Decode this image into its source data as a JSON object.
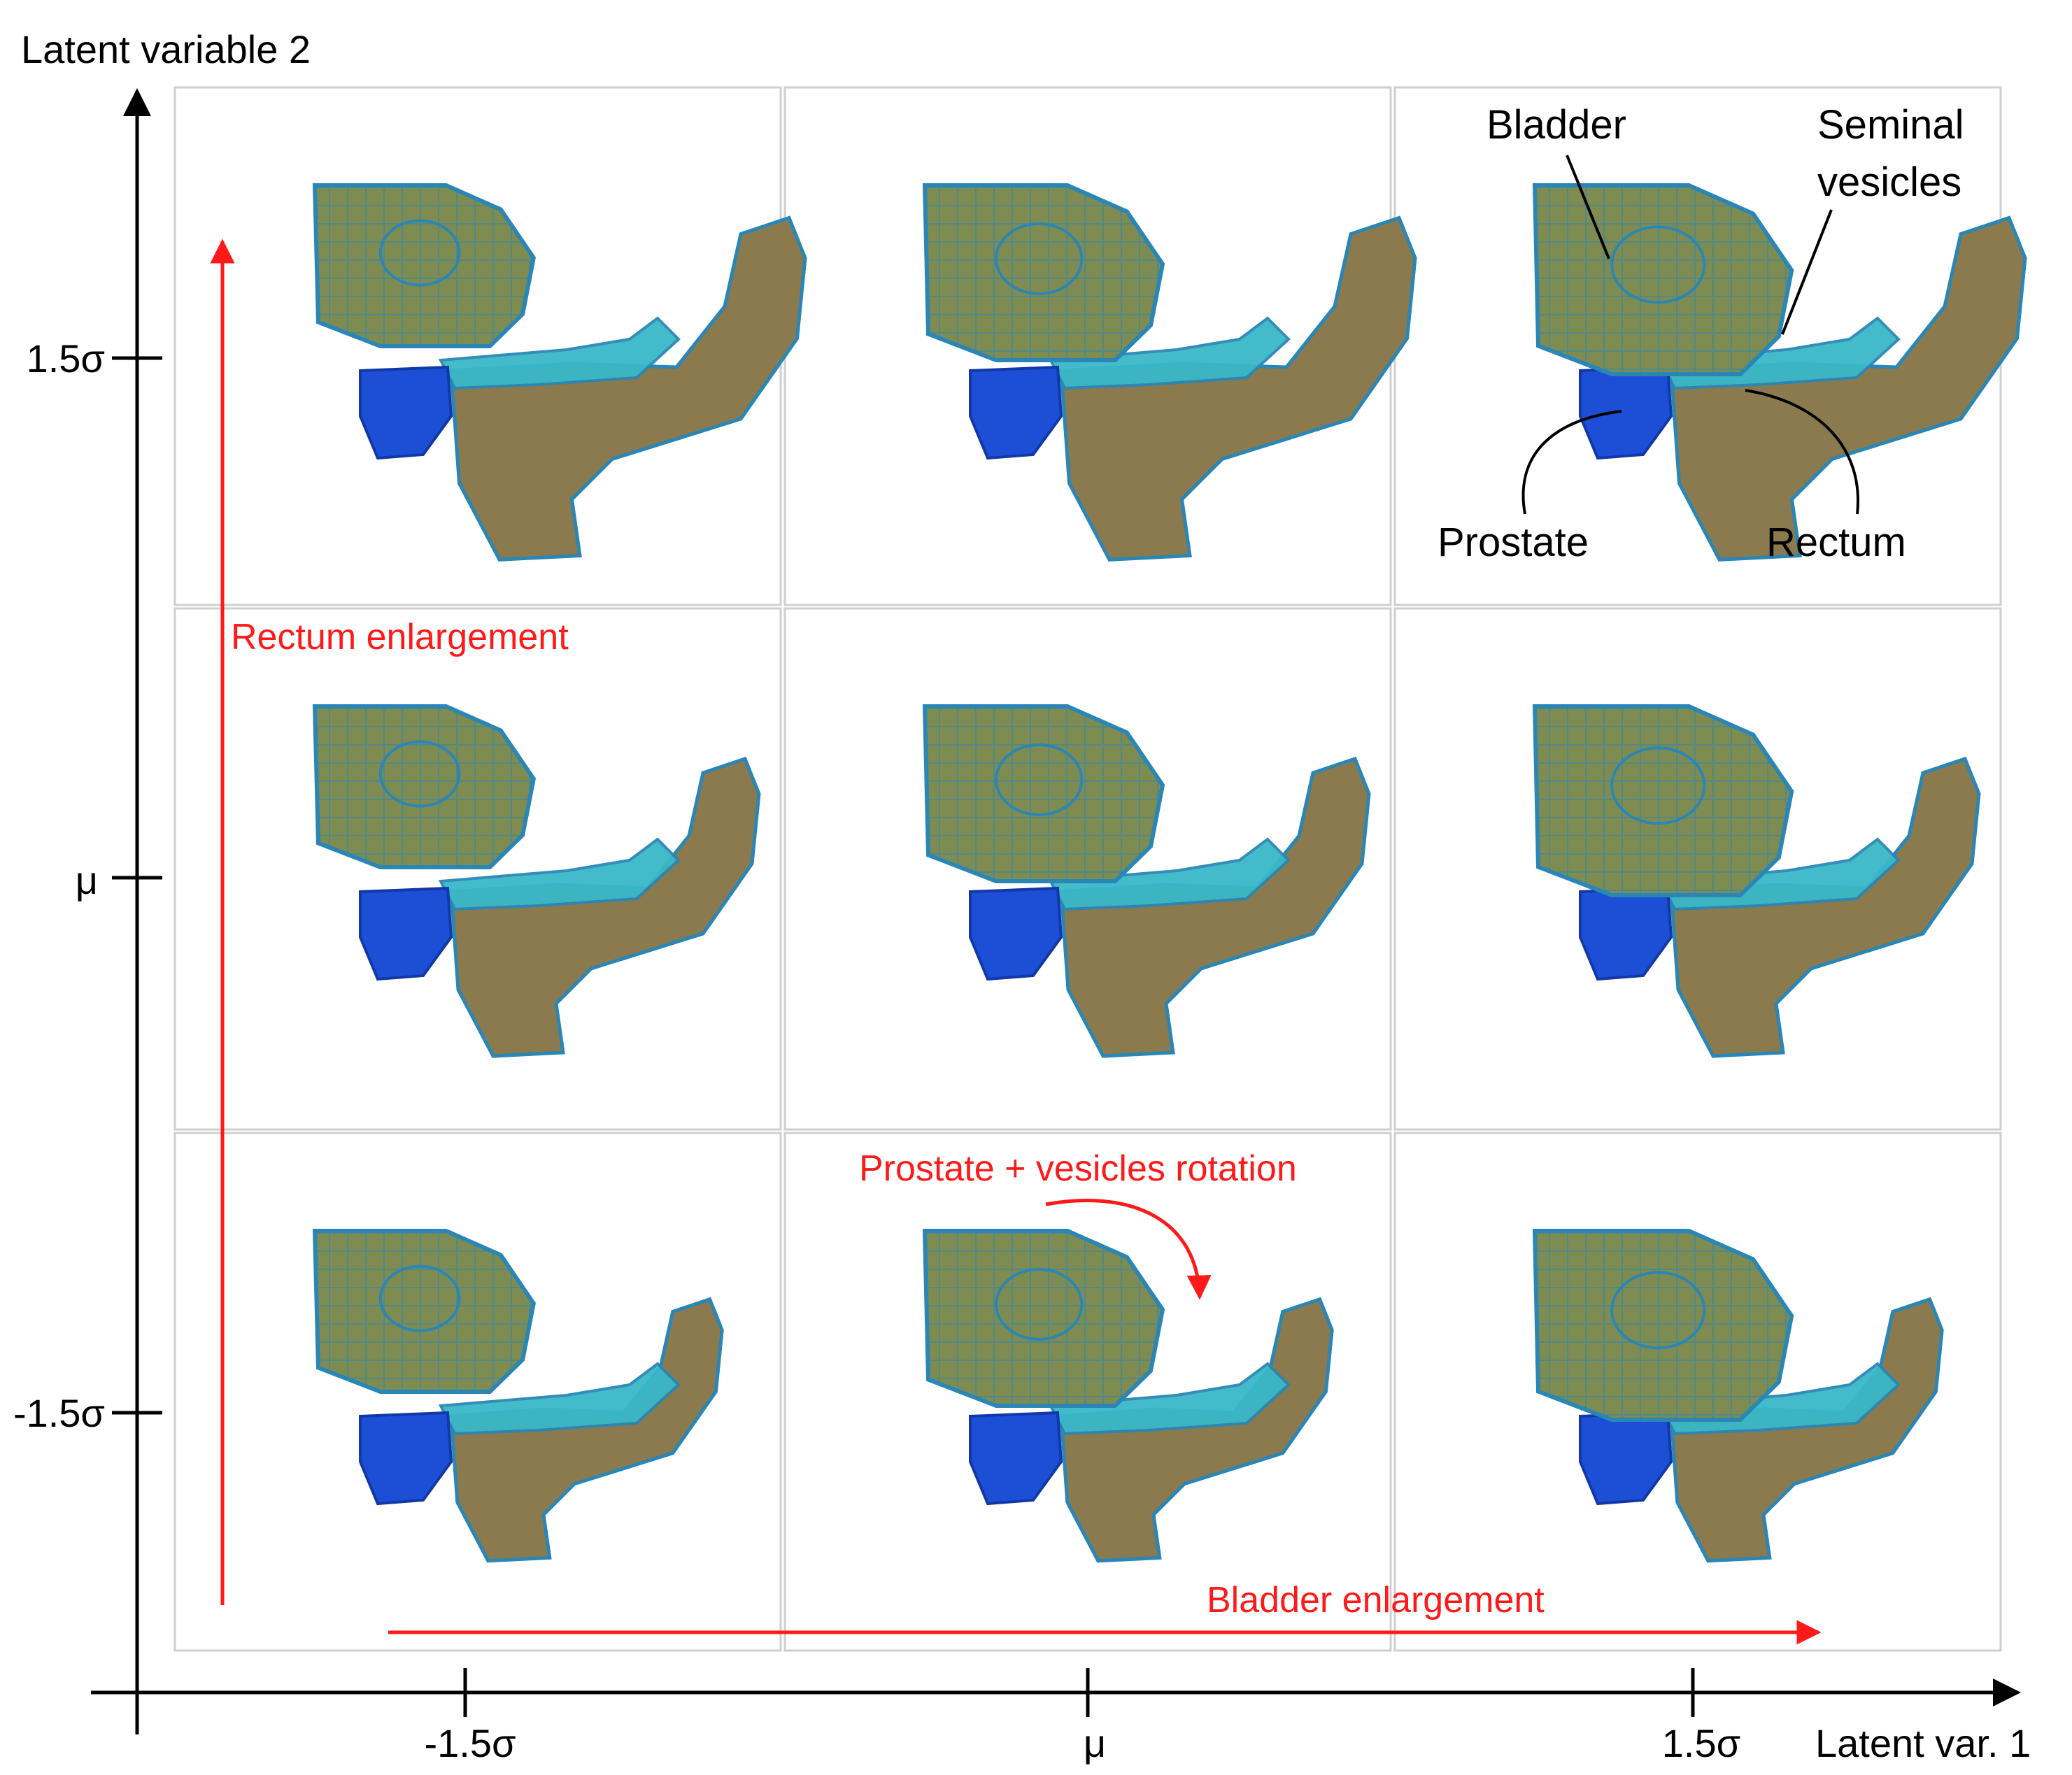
{
  "axes": {
    "y_title": "Latent variable 2",
    "x_title": "Latent var. 1",
    "y_ticks": [
      "1.5σ",
      "μ",
      "-1.5σ"
    ],
    "x_ticks": [
      "-1.5σ",
      "μ",
      "1.5σ"
    ]
  },
  "grid": {
    "rows": 3,
    "cols": 3
  },
  "organ_labels": {
    "bladder": "Bladder",
    "seminal_line1": "Seminal",
    "seminal_line2": "vesicles",
    "prostate": "Prostate",
    "rectum": "Rectum"
  },
  "annotations": {
    "rectum": "Rectum enlargement",
    "bladder": "Bladder enlargement",
    "rotation": "Prostate + vesicles rotation"
  },
  "colors": {
    "bladder": "#7e8c52",
    "bladder_edge": "#2a86b5",
    "prostate": "#1c4ed6",
    "vesicles": "#39b8c8",
    "rectum": "#8a7a4e",
    "arrow": "#ff1a1a",
    "cell_border": "#cfcfcf"
  },
  "panels": [
    {
      "row": 0,
      "col": 0,
      "bladder_scale": 0.92,
      "rectum_scale": 1.15
    },
    {
      "row": 0,
      "col": 1,
      "bladder_scale": 1.0,
      "rectum_scale": 1.15
    },
    {
      "row": 0,
      "col": 2,
      "bladder_scale": 1.08,
      "rectum_scale": 1.15
    },
    {
      "row": 1,
      "col": 0,
      "bladder_scale": 0.92,
      "rectum_scale": 1.0
    },
    {
      "row": 1,
      "col": 1,
      "bladder_scale": 1.0,
      "rectum_scale": 1.0
    },
    {
      "row": 1,
      "col": 2,
      "bladder_scale": 1.08,
      "rectum_scale": 1.0
    },
    {
      "row": 2,
      "col": 0,
      "bladder_scale": 0.92,
      "rectum_scale": 0.88
    },
    {
      "row": 2,
      "col": 1,
      "bladder_scale": 1.0,
      "rectum_scale": 0.88
    },
    {
      "row": 2,
      "col": 2,
      "bladder_scale": 1.08,
      "rectum_scale": 0.88
    }
  ]
}
